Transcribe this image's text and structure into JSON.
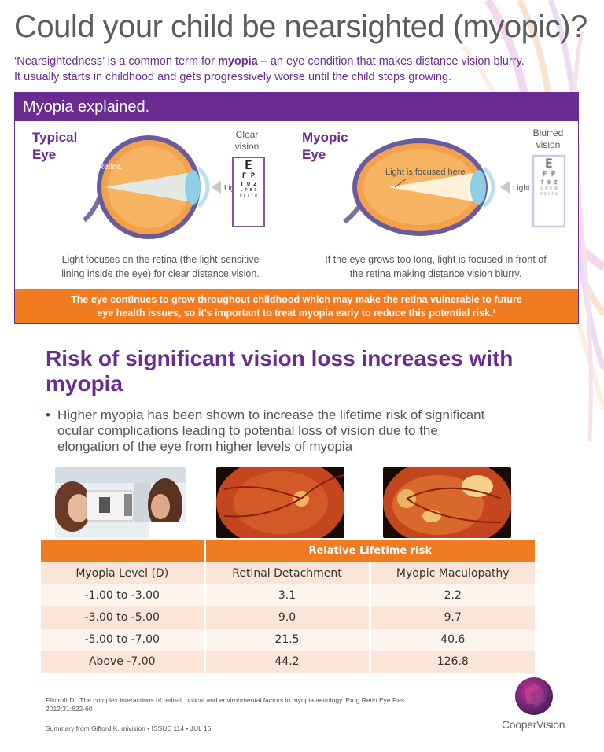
{
  "title": "Could your child be nearsighted (myopic)?",
  "intro": {
    "line1_pre": "‘Nearsightedness’ is a common term for ",
    "line1_bold": "myopia",
    "line1_post": " – an eye condition that makes distance vision blurry.",
    "line2": "It usually starts in childhood and gets progressively worse until the child stops growing."
  },
  "panel": {
    "heading": "Myopia explained.",
    "typical": {
      "label_line1": "Typical",
      "label_line2": "Eye",
      "retina_label": "Retina",
      "light_label": "Light",
      "vision_line1": "Clear",
      "vision_line2": "vision",
      "caption_line1": "Light focuses on the retina (the light-sensitive",
      "caption_line2": "lining inside the eye) for clear distance vision."
    },
    "myopic": {
      "label_line1": "Myopic",
      "label_line2": "Eye",
      "focus_label": "Light is focused here",
      "light_label": "Light",
      "vision_line1": "Blurred",
      "vision_line2": "vision",
      "caption_line1": "If the eye grows too long, light is focused in front of",
      "caption_line2": "the retina making distance vision blurry."
    },
    "eye_chart": {
      "row1": "E",
      "row2": "F P",
      "row3": "T O Z",
      "row4": "L P E D",
      "row5": "P E C F D"
    },
    "band_line1": "The eye continues to grow throughout childhood which may make the retina vulnerable to future",
    "band_line2": "eye health issues, so it’s important to treat myopia early to reduce this potential risk.¹"
  },
  "section": {
    "title_line1": "Risk of significant vision loss increases with",
    "title_line2": "myopia",
    "bullet_line1": "Higher myopia has been shown to increase the lifetime risk of significant",
    "bullet_line2": "ocular complications leading to potential loss of vision due to the",
    "bullet_line3": "elongation of the eye from higher levels of myopia"
  },
  "table": {
    "group_header": "Relative Lifetime risk",
    "columns": [
      "Myopia Level (D)",
      "Retinal Detachment",
      "Myopic Maculopathy"
    ],
    "rows": [
      [
        "-1.00 to -3.00",
        "3.1",
        "2.2"
      ],
      [
        "-3.00 to -5.00",
        "9.0",
        "9.7"
      ],
      [
        "-5.00 to -7.00",
        "21.5",
        "40.6"
      ],
      [
        "Above -7.00",
        "44.2",
        "126.8"
      ]
    ]
  },
  "reference_line1": "Flitcroft DI. The complex interactions of retinal, optical and environmental factors in myopia aetiology. Prog Retin Eye Res.",
  "reference_line2": "2012;31:622-60",
  "summary": "Summary from Gifford K. mivision • ISSUE 114 • JUL 16",
  "logo": "CooperVision",
  "colors": {
    "purple": "#6a2c91",
    "orange": "#f07b21",
    "peach": "#fbe5d8",
    "light_peach": "#fef4ee"
  }
}
